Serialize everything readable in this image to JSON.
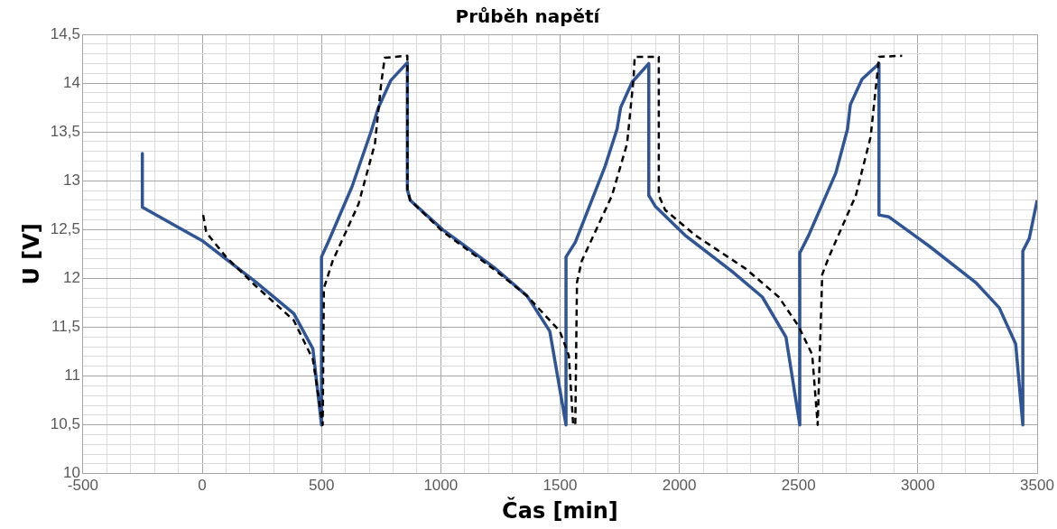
{
  "chart_data": {
    "type": "line",
    "title": "Průběh napětí",
    "xlabel": "Čas [min]",
    "ylabel": "U [V]",
    "xlim": [
      -500,
      3500
    ],
    "xticks": [
      -500,
      {
        "value": -400,
        "label": null
      },
      {
        "value": -300,
        "label": null
      },
      {
        "value": -200,
        "label": null
      },
      {
        "value": -100,
        "label": null
      },
      0,
      {
        "value": 100,
        "label": null
      },
      {
        "value": 200,
        "label": null
      },
      {
        "value": 300,
        "label": null
      },
      {
        "value": 400,
        "label": null
      },
      500,
      {
        "value": 600,
        "label": null
      },
      {
        "value": 700,
        "label": null
      },
      {
        "value": 800,
        "label": null
      },
      {
        "value": 900,
        "label": null
      },
      1000,
      {
        "value": 1100,
        "label": null
      },
      {
        "value": 1200,
        "label": null
      },
      {
        "value": 1300,
        "label": null
      },
      {
        "value": 1400,
        "label": null
      },
      1500,
      {
        "value": 1600,
        "label": null
      },
      {
        "value": 1700,
        "label": null
      },
      {
        "value": 1800,
        "label": null
      },
      {
        "value": 1900,
        "label": null
      },
      2000,
      {
        "value": 2100,
        "label": null
      },
      {
        "value": 2200,
        "label": null
      },
      {
        "value": 2300,
        "label": null
      },
      {
        "value": 2400,
        "label": null
      },
      2500,
      {
        "value": 2600,
        "label": null
      },
      {
        "value": 2700,
        "label": null
      },
      {
        "value": 2800,
        "label": null
      },
      {
        "value": 2900,
        "label": null
      },
      3000,
      {
        "value": 3100,
        "label": null
      },
      {
        "value": 3200,
        "label": null
      },
      {
        "value": 3300,
        "label": null
      },
      {
        "value": 3400,
        "label": null
      },
      3500
    ],
    "ylim": [
      10,
      14.5
    ],
    "yticks": [
      10,
      {
        "value": 10.1,
        "label": null
      },
      {
        "value": 10.2,
        "label": null
      },
      {
        "value": 10.3,
        "label": null
      },
      {
        "value": 10.4,
        "label": null
      },
      {
        "value": 10.5,
        "label": "10,5"
      },
      {
        "value": 10.6,
        "label": null
      },
      {
        "value": 10.7,
        "label": null
      },
      {
        "value": 10.8,
        "label": null
      },
      {
        "value": 10.9,
        "label": null
      },
      11,
      {
        "value": 11.1,
        "label": null
      },
      {
        "value": 11.2,
        "label": null
      },
      {
        "value": 11.3,
        "label": null
      },
      {
        "value": 11.4,
        "label": null
      },
      {
        "value": 11.5,
        "label": "11,5"
      },
      {
        "value": 11.6,
        "label": null
      },
      {
        "value": 11.7,
        "label": null
      },
      {
        "value": 11.8,
        "label": null
      },
      {
        "value": 11.9,
        "label": null
      },
      12,
      {
        "value": 12.1,
        "label": null
      },
      {
        "value": 12.2,
        "label": null
      },
      {
        "value": 12.3,
        "label": null
      },
      {
        "value": 12.4,
        "label": null
      },
      {
        "value": 12.5,
        "label": "12,5"
      },
      {
        "value": 12.6,
        "label": null
      },
      {
        "value": 12.7,
        "label": null
      },
      {
        "value": 12.8,
        "label": null
      },
      {
        "value": 12.9,
        "label": null
      },
      13,
      {
        "value": 13.1,
        "label": null
      },
      {
        "value": 13.2,
        "label": null
      },
      {
        "value": 13.3,
        "label": null
      },
      {
        "value": 13.4,
        "label": null
      },
      {
        "value": 13.5,
        "label": "13,5"
      },
      {
        "value": 13.6,
        "label": null
      },
      {
        "value": 13.7,
        "label": null
      },
      {
        "value": 13.8,
        "label": null
      },
      {
        "value": 13.9,
        "label": null
      },
      14,
      {
        "value": 14.1,
        "label": null
      },
      {
        "value": 14.2,
        "label": null
      },
      {
        "value": 14.3,
        "label": null
      },
      {
        "value": 14.4,
        "label": null
      },
      {
        "value": 14.5,
        "label": "14,5"
      }
    ],
    "grid": true,
    "legend": false,
    "marker": "none",
    "series": [
      {
        "color": "#000000",
        "line_style": "dashed",
        "x": [
          4,
          17,
          100,
          221,
          384,
          464,
          505,
          510,
          547,
          655,
          724,
          750,
          765,
          860,
          860,
          872,
          1008,
          1225,
          1362,
          1499,
          1537,
          1555,
          1564,
          1571,
          1591,
          1718,
          1781,
          1808,
          1813,
          1914,
          1914,
          1941,
          2068,
          2278,
          2417,
          2500,
          2557,
          2580,
          2599,
          2627,
          2740,
          2802,
          2831,
          2837,
          2934
        ],
        "values": [
          12.65,
          12.47,
          12.22,
          11.93,
          11.57,
          11.17,
          10.5,
          11.9,
          12.18,
          12.76,
          13.38,
          13.99,
          14.26,
          14.28,
          12.91,
          12.8,
          12.48,
          12.09,
          11.82,
          11.46,
          11.21,
          10.5,
          10.5,
          11.96,
          12.18,
          12.85,
          13.38,
          14.04,
          14.27,
          14.27,
          12.85,
          12.7,
          12.44,
          12.1,
          11.81,
          11.51,
          11.22,
          10.5,
          12.04,
          12.22,
          12.85,
          13.45,
          14.12,
          14.27,
          14.28
        ]
      },
      {
        "color": "#2f5597",
        "line_style": "solid",
        "x": [
          -251,
          -251,
          4,
          221,
          384,
          464,
          500,
          500,
          533,
          628,
          710,
          737,
          791,
          860,
          860,
          872,
          1008,
          1225,
          1362,
          1457,
          1525,
          1525,
          1564,
          1689,
          1739,
          1754,
          1802,
          1872,
          1872,
          1899,
          2025,
          2222,
          2348,
          2447,
          2505,
          2505,
          2542,
          2656,
          2705,
          2717,
          2766,
          2837,
          2837,
          2879,
          3048,
          3242,
          3341,
          3410,
          3440,
          3440,
          3467,
          3500
        ],
        "values": [
          13.28,
          12.73,
          12.38,
          11.97,
          11.64,
          11.28,
          10.5,
          12.22,
          12.4,
          12.94,
          13.52,
          13.74,
          14.03,
          14.21,
          12.91,
          12.8,
          12.5,
          12.11,
          11.82,
          11.46,
          10.5,
          12.22,
          12.37,
          13.15,
          13.53,
          13.75,
          14.01,
          14.2,
          12.85,
          12.74,
          12.44,
          12.07,
          11.81,
          11.4,
          10.5,
          12.26,
          12.44,
          13.08,
          13.53,
          13.78,
          14.04,
          14.2,
          12.65,
          12.63,
          12.33,
          11.96,
          11.7,
          11.33,
          10.5,
          12.28,
          12.41,
          12.8
        ]
      }
    ]
  }
}
